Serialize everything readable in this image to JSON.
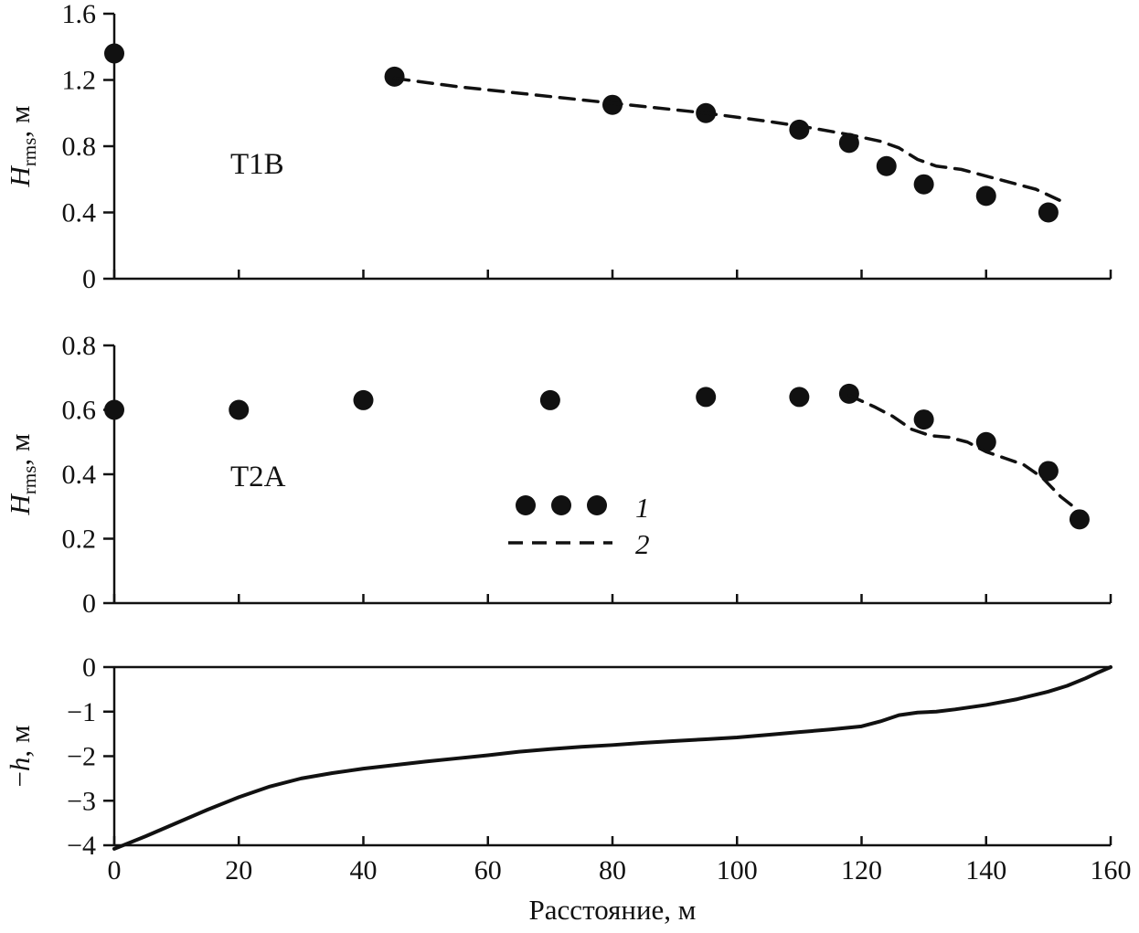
{
  "figure": {
    "xlabel": "Расстояние, м",
    "x_range": [
      0,
      160
    ],
    "x_ticks": {
      "values": [
        0,
        20,
        40,
        60,
        80,
        100,
        120,
        140,
        160
      ],
      "labels": [
        "0",
        "20",
        "40",
        "60",
        "80",
        "100",
        "120",
        "140",
        "160"
      ]
    },
    "ink": "#111111"
  },
  "chart_data": [
    {
      "id": "t1b",
      "type": "scatter",
      "title": "T1B",
      "ylabel": {
        "var": "H",
        "sub": "rms",
        "unit": ", м"
      },
      "ylim": [
        0,
        1.6
      ],
      "yticks": [
        {
          "v": 0,
          "label": "0"
        },
        {
          "v": 0.4,
          "label": "0.4"
        },
        {
          "v": 0.8,
          "label": "0.8"
        },
        {
          "v": 1.2,
          "label": "1.2"
        },
        {
          "v": 1.6,
          "label": "1.6"
        }
      ],
      "spines": [
        "left",
        "bottom"
      ],
      "series": [
        {
          "name": "1",
          "type": "scatter",
          "points": [
            [
              0,
              1.36
            ],
            [
              45,
              1.22
            ],
            [
              80,
              1.05
            ],
            [
              95,
              1.0
            ],
            [
              110,
              0.9
            ],
            [
              118,
              0.82
            ],
            [
              124,
              0.68
            ],
            [
              130,
              0.57
            ],
            [
              140,
              0.5
            ],
            [
              150,
              0.4
            ]
          ]
        },
        {
          "name": "2",
          "type": "dashed-line",
          "points": [
            [
              45,
              1.21
            ],
            [
              55,
              1.16
            ],
            [
              65,
              1.12
            ],
            [
              75,
              1.08
            ],
            [
              85,
              1.04
            ],
            [
              95,
              1.0
            ],
            [
              105,
              0.95
            ],
            [
              112,
              0.91
            ],
            [
              118,
              0.87
            ],
            [
              123,
              0.83
            ],
            [
              126,
              0.79
            ],
            [
              129,
              0.72
            ],
            [
              132,
              0.68
            ],
            [
              136,
              0.66
            ],
            [
              142,
              0.6
            ],
            [
              148,
              0.54
            ],
            [
              152,
              0.47
            ]
          ]
        }
      ]
    },
    {
      "id": "t2a",
      "type": "scatter",
      "title": "T2A",
      "ylabel": {
        "var": "H",
        "sub": "rms",
        "unit": ", м"
      },
      "ylim": [
        0,
        0.8
      ],
      "yticks": [
        {
          "v": 0,
          "label": "0"
        },
        {
          "v": 0.2,
          "label": "0.2"
        },
        {
          "v": 0.4,
          "label": "0.4"
        },
        {
          "v": 0.6,
          "label": "0.6"
        },
        {
          "v": 0.8,
          "label": "0.8"
        }
      ],
      "spines": [
        "left",
        "bottom"
      ],
      "legend": [
        {
          "marker": "dots",
          "label": "1"
        },
        {
          "marker": "dashed",
          "label": "2"
        }
      ],
      "series": [
        {
          "name": "1",
          "type": "scatter",
          "points": [
            [
              0,
              0.6
            ],
            [
              20,
              0.6
            ],
            [
              40,
              0.63
            ],
            [
              70,
              0.63
            ],
            [
              95,
              0.64
            ],
            [
              110,
              0.64
            ],
            [
              118,
              0.65
            ],
            [
              130,
              0.57
            ],
            [
              140,
              0.5
            ],
            [
              150,
              0.41
            ],
            [
              155,
              0.26
            ]
          ]
        },
        {
          "name": "2",
          "type": "dashed-line",
          "points": [
            [
              118,
              0.645
            ],
            [
              122,
              0.61
            ],
            [
              125,
              0.58
            ],
            [
              128,
              0.54
            ],
            [
              131,
              0.52
            ],
            [
              134,
              0.515
            ],
            [
              137,
              0.5
            ],
            [
              140,
              0.47
            ],
            [
              143,
              0.45
            ],
            [
              146,
              0.43
            ],
            [
              149,
              0.39
            ],
            [
              152,
              0.33
            ],
            [
              154,
              0.3
            ],
            [
              155,
              0.28
            ]
          ]
        }
      ]
    },
    {
      "id": "depth",
      "type": "line",
      "title": "",
      "ylabel": {
        "prefix": "−",
        "var": "h",
        "unit": ", м"
      },
      "ylim": [
        -4,
        0
      ],
      "yticks": [
        {
          "v": 0,
          "label": "0"
        },
        {
          "v": -1,
          "label": "−1"
        },
        {
          "v": -2,
          "label": "−2"
        },
        {
          "v": -3,
          "label": "−3"
        },
        {
          "v": -4,
          "label": "−4"
        }
      ],
      "spines": [
        "left",
        "bottom",
        "top"
      ],
      "series": [
        {
          "name": "depth-profile",
          "type": "solid-line",
          "points": [
            [
              0,
              -4.08
            ],
            [
              5,
              -3.8
            ],
            [
              10,
              -3.5
            ],
            [
              15,
              -3.2
            ],
            [
              20,
              -2.92
            ],
            [
              25,
              -2.68
            ],
            [
              30,
              -2.5
            ],
            [
              35,
              -2.38
            ],
            [
              40,
              -2.28
            ],
            [
              45,
              -2.2
            ],
            [
              50,
              -2.12
            ],
            [
              55,
              -2.05
            ],
            [
              60,
              -1.98
            ],
            [
              65,
              -1.9
            ],
            [
              70,
              -1.84
            ],
            [
              75,
              -1.79
            ],
            [
              80,
              -1.75
            ],
            [
              85,
              -1.7
            ],
            [
              90,
              -1.66
            ],
            [
              95,
              -1.62
            ],
            [
              100,
              -1.58
            ],
            [
              105,
              -1.52
            ],
            [
              110,
              -1.46
            ],
            [
              115,
              -1.4
            ],
            [
              120,
              -1.33
            ],
            [
              123,
              -1.22
            ],
            [
              126,
              -1.08
            ],
            [
              129,
              -1.02
            ],
            [
              132,
              -1.0
            ],
            [
              135,
              -0.95
            ],
            [
              140,
              -0.85
            ],
            [
              145,
              -0.72
            ],
            [
              150,
              -0.55
            ],
            [
              153,
              -0.42
            ],
            [
              156,
              -0.25
            ],
            [
              158,
              -0.12
            ],
            [
              160,
              0
            ]
          ]
        }
      ]
    }
  ]
}
